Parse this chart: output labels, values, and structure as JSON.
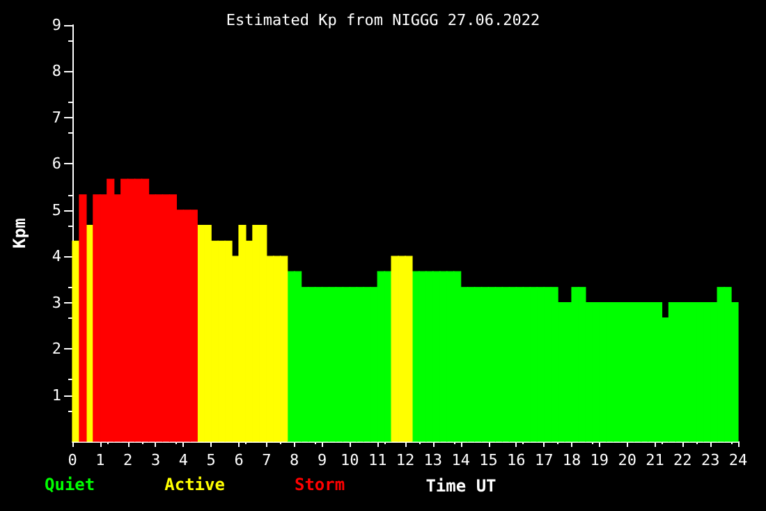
{
  "chart_data": {
    "type": "histogram",
    "title": "Estimated Kp from NIGGG 27.06.2022",
    "xlabel": "Time UT",
    "ylabel": "Kpm",
    "bins": [
      0,
      0.25,
      0.5,
      0.75,
      1,
      1.25,
      1.5,
      1.75,
      2,
      2.25,
      2.5,
      2.75,
      3,
      3.25,
      3.5,
      3.75,
      4,
      4.25,
      4.5,
      4.75,
      5,
      5.25,
      5.5,
      5.75,
      6,
      6.25,
      6.5,
      6.75,
      7,
      7.25,
      7.5,
      7.75,
      8,
      8.25,
      8.5,
      8.75,
      9,
      9.25,
      9.5,
      9.75,
      10,
      10.25,
      10.5,
      10.75,
      11,
      11.25,
      11.5,
      11.75,
      12,
      12.25,
      12.5,
      12.75,
      13,
      13.25,
      13.5,
      13.75,
      14,
      14.25,
      14.5,
      14.75,
      15,
      15.25,
      15.5,
      15.75,
      16,
      16.25,
      16.5,
      16.75,
      17,
      17.25,
      17.5,
      17.75,
      18,
      18.25,
      18.5,
      18.75,
      19,
      19.25,
      19.5,
      19.75,
      20,
      20.25,
      20.5,
      20.75,
      21,
      21.25,
      21.5,
      21.75,
      22,
      22.25,
      22.5,
      22.75,
      23,
      23.25,
      23.5,
      23.75,
      24
    ],
    "series": [
      {
        "name": "Quiet",
        "color": "#00ff00",
        "values": [
          null,
          null,
          null,
          null,
          null,
          null,
          null,
          null,
          null,
          null,
          null,
          null,
          null,
          null,
          null,
          null,
          null,
          null,
          null,
          null,
          null,
          null,
          null,
          null,
          null,
          null,
          null,
          null,
          null,
          null,
          null,
          3.67,
          3.67,
          3.33,
          3.33,
          3.33,
          3.33,
          3.33,
          3.33,
          3.33,
          3.33,
          3.33,
          3.33,
          3.33,
          3.67,
          3.67,
          null,
          null,
          null,
          3.67,
          3.67,
          3.67,
          3.67,
          3.67,
          3.67,
          3.67,
          3.33,
          3.33,
          3.33,
          3.33,
          3.33,
          3.33,
          3.33,
          3.33,
          3.33,
          3.33,
          3.33,
          3.33,
          3.33,
          3.33,
          3,
          3,
          3.33,
          3.33,
          3,
          3,
          3,
          3,
          3,
          3,
          3,
          3,
          3,
          3,
          3,
          2.67,
          3,
          3,
          3,
          3,
          3,
          3,
          3,
          3.33,
          3.33,
          3
        ]
      },
      {
        "name": "Active",
        "color": "#ffff00",
        "values": [
          4.33,
          null,
          4.67,
          null,
          null,
          null,
          null,
          null,
          null,
          null,
          null,
          null,
          null,
          null,
          null,
          null,
          null,
          null,
          4.67,
          4.67,
          4.33,
          4.33,
          4.33,
          4,
          4.67,
          4.33,
          4.67,
          4.67,
          4,
          4,
          4,
          null,
          null,
          null,
          null,
          null,
          null,
          null,
          null,
          null,
          null,
          null,
          null,
          null,
          null,
          null,
          4,
          4,
          4,
          null,
          null,
          null,
          null,
          null,
          null,
          null,
          null,
          null,
          null,
          null,
          null,
          null,
          null,
          null,
          null,
          null,
          null,
          null,
          null,
          null,
          null,
          null,
          null,
          null,
          null,
          null,
          null,
          null,
          null,
          null,
          null,
          null,
          null,
          null,
          null,
          null,
          null,
          null,
          null,
          null,
          null,
          null,
          null,
          null,
          null,
          null
        ]
      },
      {
        "name": "Storm",
        "color": "#ff0000",
        "values": [
          null,
          5.33,
          null,
          5.33,
          5.33,
          5.67,
          5.33,
          5.67,
          5.67,
          5.67,
          5.67,
          5.33,
          5.33,
          5.33,
          5.33,
          5,
          5,
          5,
          null,
          null,
          null,
          null,
          null,
          null,
          null,
          null,
          null,
          null,
          null,
          null,
          null,
          null,
          null,
          null,
          null,
          null,
          null,
          null,
          null,
          null,
          null,
          null,
          null,
          null,
          null,
          null,
          null,
          null,
          null,
          null,
          null,
          null,
          null,
          null,
          null,
          null,
          null,
          null,
          null,
          null,
          null,
          null,
          null,
          null,
          null,
          null,
          null,
          null,
          null,
          null,
          null,
          null,
          null,
          null,
          null,
          null,
          null,
          null,
          null,
          null,
          null,
          null,
          null,
          null,
          null,
          null,
          null,
          null,
          null,
          null,
          null,
          null,
          null,
          null,
          null,
          null
        ]
      }
    ],
    "xlim": [
      0,
      24
    ],
    "xticks": [
      0,
      1,
      2,
      3,
      4,
      5,
      6,
      7,
      8,
      9,
      10,
      11,
      12,
      13,
      14,
      15,
      16,
      17,
      18,
      19,
      20,
      21,
      22,
      23,
      24
    ],
    "ylim": [
      0,
      9
    ],
    "yticks": [
      1,
      2,
      3,
      4,
      5,
      6,
      7,
      8,
      9
    ],
    "grid": false,
    "legend": "bottom left"
  }
}
